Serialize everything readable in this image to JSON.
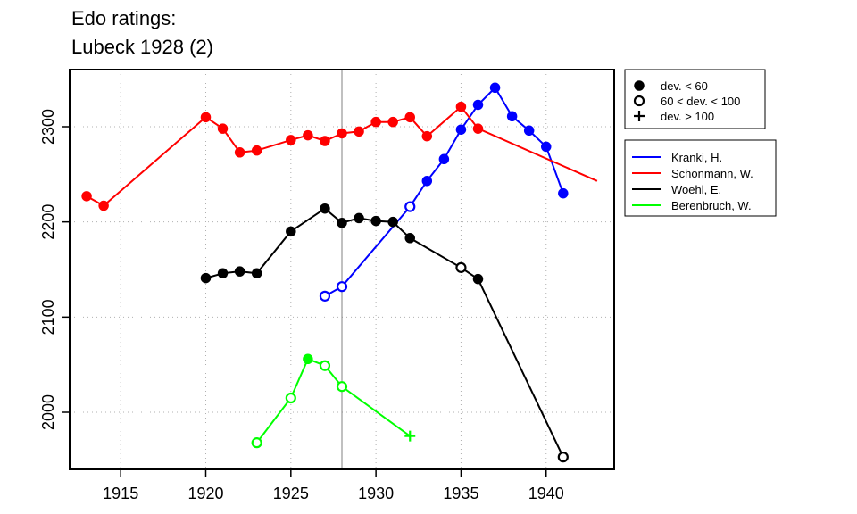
{
  "title_line1": "Edo ratings:",
  "title_line2": "Lubeck 1928 (2)",
  "chart_data": {
    "type": "line",
    "xlim": [
      1912,
      1944
    ],
    "ylim": [
      1940,
      2360
    ],
    "x_ticks": [
      1915,
      1920,
      1925,
      1930,
      1935,
      1940
    ],
    "y_ticks": [
      2000,
      2100,
      2200,
      2300
    ],
    "grid": true,
    "reference_line_x": 1928,
    "legend_markers": [
      {
        "symbol": "filled",
        "label": "dev. < 60"
      },
      {
        "symbol": "open",
        "label": "60 < dev. < 100"
      },
      {
        "symbol": "plus",
        "label": "dev. > 100"
      }
    ],
    "legend_players_position": "right",
    "series": [
      {
        "name": "Kranki, H.",
        "color": "#0000ff",
        "points": [
          [
            1927,
            2122,
            "open"
          ],
          [
            1928,
            2132,
            "open"
          ],
          [
            1932,
            2216,
            "open"
          ],
          [
            1933,
            2243,
            "filled"
          ],
          [
            1934,
            2266,
            "filled"
          ],
          [
            1935,
            2297,
            "filled"
          ],
          [
            1936,
            2323,
            "filled"
          ],
          [
            1937,
            2341,
            "filled"
          ],
          [
            1938,
            2311,
            "filled"
          ],
          [
            1939,
            2296,
            "filled"
          ],
          [
            1940,
            2279,
            "filled"
          ],
          [
            1941,
            2230,
            "filled"
          ]
        ]
      },
      {
        "name": "Schonmann, W.",
        "color": "#ff0000",
        "points": [
          [
            1913,
            2227,
            "filled"
          ],
          [
            1914,
            2217,
            "filled"
          ],
          [
            1920,
            2310,
            "filled"
          ],
          [
            1921,
            2298,
            "filled"
          ],
          [
            1922,
            2273,
            "filled"
          ],
          [
            1923,
            2275,
            "filled"
          ],
          [
            1925,
            2286,
            "filled"
          ],
          [
            1926,
            2291,
            "filled"
          ],
          [
            1927,
            2285,
            "filled"
          ],
          [
            1928,
            2293,
            "filled"
          ],
          [
            1929,
            2295,
            "filled"
          ],
          [
            1930,
            2305,
            "filled"
          ],
          [
            1931,
            2305,
            "filled"
          ],
          [
            1932,
            2310,
            "filled"
          ],
          [
            1933,
            2290,
            "filled"
          ],
          [
            1935,
            2321,
            "filled"
          ],
          [
            1936,
            2298,
            "filled"
          ],
          [
            1943,
            2243,
            "none"
          ]
        ]
      },
      {
        "name": "Woehl, E.",
        "color": "#000000",
        "points": [
          [
            1920,
            2141,
            "filled"
          ],
          [
            1921,
            2146,
            "filled"
          ],
          [
            1922,
            2148,
            "filled"
          ],
          [
            1923,
            2146,
            "filled"
          ],
          [
            1925,
            2190,
            "filled"
          ],
          [
            1927,
            2214,
            "filled"
          ],
          [
            1928,
            2199,
            "filled"
          ],
          [
            1929,
            2204,
            "filled"
          ],
          [
            1930,
            2201,
            "filled"
          ],
          [
            1931,
            2200,
            "filled"
          ],
          [
            1932,
            2183,
            "filled"
          ],
          [
            1935,
            2152,
            "open"
          ],
          [
            1936,
            2140,
            "filled"
          ],
          [
            1941,
            1953,
            "open"
          ]
        ]
      },
      {
        "name": "Berenbruch, W.",
        "color": "#00ff00",
        "points": [
          [
            1923,
            1968,
            "open"
          ],
          [
            1925,
            2015,
            "open"
          ],
          [
            1926,
            2056,
            "filled"
          ],
          [
            1927,
            2049,
            "open"
          ],
          [
            1928,
            2027,
            "open"
          ],
          [
            1932,
            1975,
            "plus"
          ]
        ]
      }
    ]
  }
}
